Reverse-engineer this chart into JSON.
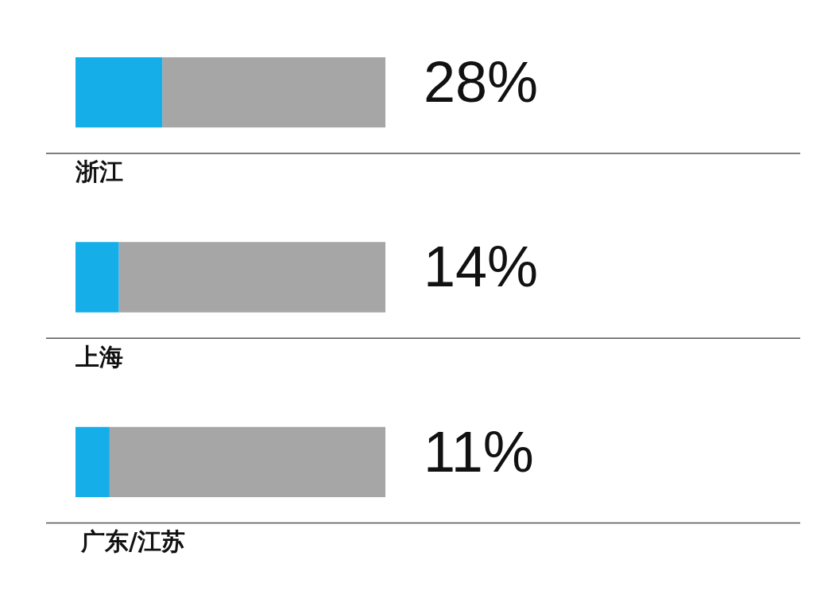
{
  "chart_data": {
    "type": "bar",
    "orientation": "horizontal",
    "stacked": true,
    "categories": [
      "浙江",
      "上海",
      "广东/江苏"
    ],
    "series": [
      {
        "color": "#16aee9",
        "values": [
          28,
          14,
          11
        ],
        "value_labels": [
          "28%",
          "14%",
          "11%"
        ]
      },
      {
        "color": "#a6a6a6",
        "values": [
          72,
          86,
          89
        ]
      }
    ],
    "xlim": [
      0,
      100
    ],
    "grid": "y",
    "tick_labels": "y"
  }
}
